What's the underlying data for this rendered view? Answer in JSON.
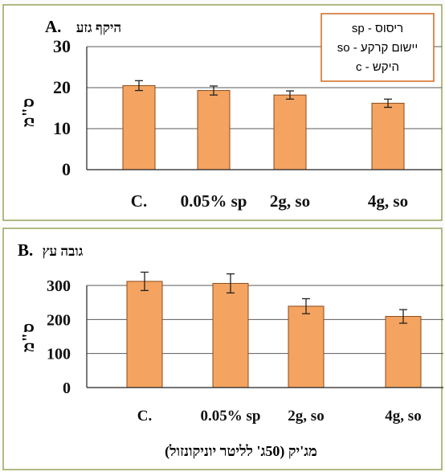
{
  "colors": {
    "bar_fill": "#f4a460",
    "bar_stroke": "#8b4a1c",
    "gridline": "#5a5a5a",
    "legend_border": "#d2691e",
    "panel_border": "#9aa35a",
    "text": "#111111"
  },
  "legend": {
    "lines": [
      "sp - ריסוס",
      "so - יישום קרקע",
      "c   - היקש"
    ]
  },
  "chart_data": [
    {
      "type": "bar",
      "panel_label": "A.",
      "title": "היקף גזע",
      "ylabel": "ס\"מ",
      "categories": [
        "C.",
        "0.05% sp",
        "2g, so",
        "4g, so"
      ],
      "values": [
        20.5,
        19.3,
        18.2,
        16.2
      ],
      "errors": [
        1.2,
        1.1,
        1.0,
        1.0
      ],
      "ylim": [
        0,
        30
      ],
      "yticks": [
        0,
        10,
        20,
        30
      ],
      "grid": true
    },
    {
      "type": "bar",
      "panel_label": "B.",
      "title": "גובה עץ",
      "ylabel": "ס\"מ",
      "xlabel": "מג'יק (50ג' לליטר יוניקונזול)",
      "categories": [
        "C.",
        "0.05% sp",
        "2g, so",
        "4g, so"
      ],
      "values": [
        312,
        306,
        239,
        209
      ],
      "errors": [
        27,
        28,
        22,
        20
      ],
      "ylim": [
        0,
        300
      ],
      "yticks": [
        0,
        100,
        200,
        300
      ],
      "grid": true
    }
  ]
}
